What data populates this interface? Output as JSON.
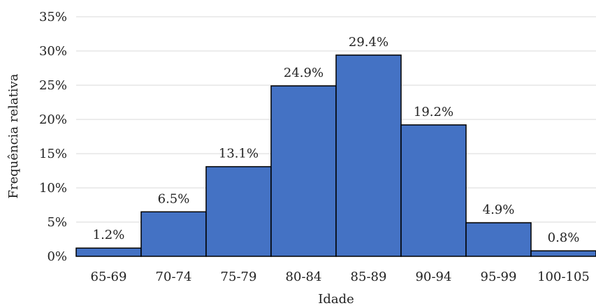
{
  "chart_data": {
    "type": "bar",
    "title": "",
    "xlabel": "Idade",
    "ylabel": "Frequência relativa",
    "categories": [
      "65-69",
      "70-74",
      "75-79",
      "80-84",
      "85-89",
      "90-94",
      "95-99",
      "100-105"
    ],
    "values": [
      1.2,
      6.5,
      13.1,
      24.9,
      29.4,
      19.2,
      4.9,
      0.8
    ],
    "data_labels": [
      "1.2%",
      "6.5%",
      "13.1%",
      "24.9%",
      "29.4%",
      "19.2%",
      "4.9%",
      "0.8%"
    ],
    "y_ticks": [
      0,
      5,
      10,
      15,
      20,
      25,
      30,
      35
    ],
    "y_tick_labels": [
      "0%",
      "5%",
      "10%",
      "15%",
      "20%",
      "25%",
      "30%",
      "35%"
    ],
    "ylim": [
      0,
      35
    ],
    "grid": true,
    "legend": "none",
    "colors": {
      "bar_fill": "#4472C4",
      "bar_edge": "#000000",
      "grid": "#d9d9d9"
    }
  }
}
